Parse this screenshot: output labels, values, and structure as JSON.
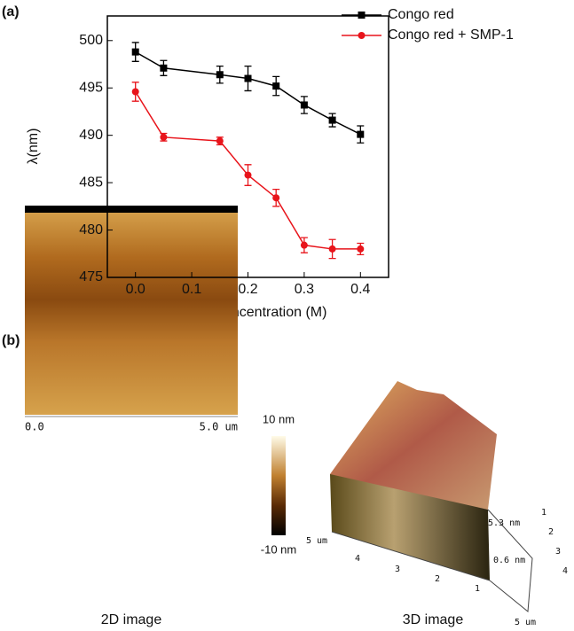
{
  "chart_data": {
    "type": "line",
    "x_label": "NaOH Concentration (M)",
    "y_label": "λ(nm)",
    "x": [
      0.0,
      0.05,
      0.15,
      0.2,
      0.25,
      0.3,
      0.35,
      0.4
    ],
    "series": [
      {
        "name": "Congo red",
        "color": "#000000",
        "marker": "square",
        "values": [
          498.8,
          497.1,
          496.4,
          496.0,
          495.2,
          493.2,
          491.6,
          490.1
        ],
        "errors": [
          1.0,
          0.8,
          0.9,
          1.3,
          1.0,
          0.9,
          0.7,
          0.9
        ]
      },
      {
        "name": "Congo red + SMP-1",
        "color": "#e8141b",
        "marker": "circle",
        "values": [
          494.6,
          489.8,
          489.4,
          485.8,
          483.4,
          478.4,
          478.0,
          478.0
        ],
        "errors": [
          1.0,
          0.4,
          0.4,
          1.1,
          0.9,
          0.8,
          1.0,
          0.6
        ]
      }
    ],
    "xlim": [
      -0.05,
      0.45
    ],
    "ylim": [
      475,
      502.6
    ],
    "xticks": [
      {
        "value": 0,
        "label": "0.0"
      },
      0.1,
      0.2,
      0.3,
      0.4
    ],
    "yticks": [
      475,
      480,
      485,
      490,
      495,
      500
    ],
    "legend": "top-right"
  },
  "panel_labels": [
    "(a)",
    "(b)"
  ],
  "afm": {
    "left_caption": "2D image",
    "right_caption": "3D image",
    "scale_start": "0.0",
    "scale_end": "5.0 um",
    "colorbar_top": "10 nm",
    "colorbar_bottom": "-10 nm",
    "z_top": "5.3 nm",
    "z_bottom": "0.6 nm",
    "axis_start": "5 um",
    "axis_end": "5 um",
    "front_ticks": [
      "4",
      "3",
      "2",
      "1"
    ],
    "side_ticks": [
      "1",
      "2",
      "3",
      "4"
    ]
  }
}
